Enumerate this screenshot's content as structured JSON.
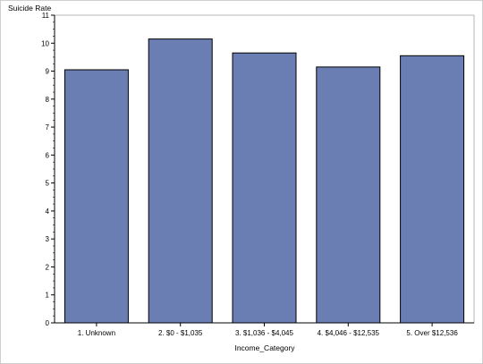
{
  "chart_data": {
    "type": "bar",
    "title": "",
    "xlabel": "Income_Category",
    "ylabel": "Suicide Rate",
    "categories": [
      "1. Unknown",
      "2. $0 - $1,035",
      "3. $1,036 - $4,045",
      "4. $4,046 - $12,535",
      "5. Over $12,536"
    ],
    "values": [
      9.05,
      10.15,
      9.65,
      9.15,
      9.55
    ],
    "ylim": [
      0,
      11
    ],
    "yticks": [
      "0",
      "1",
      "2",
      "3",
      "4",
      "5",
      "6",
      "7",
      "8",
      "9",
      "10",
      "11"
    ],
    "grid": false,
    "legend": "none",
    "bar_color": "#6b7eb4",
    "bar_edge_color": "#000000"
  }
}
